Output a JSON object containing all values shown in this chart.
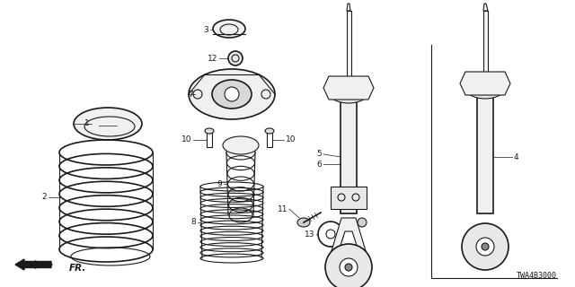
{
  "bg_color": "#ffffff",
  "line_color": "#1a1a1a",
  "part_number_text": "TWA4B3000",
  "fr_arrow_text": "FR.",
  "figsize": [
    6.4,
    3.2
  ],
  "dpi": 100
}
